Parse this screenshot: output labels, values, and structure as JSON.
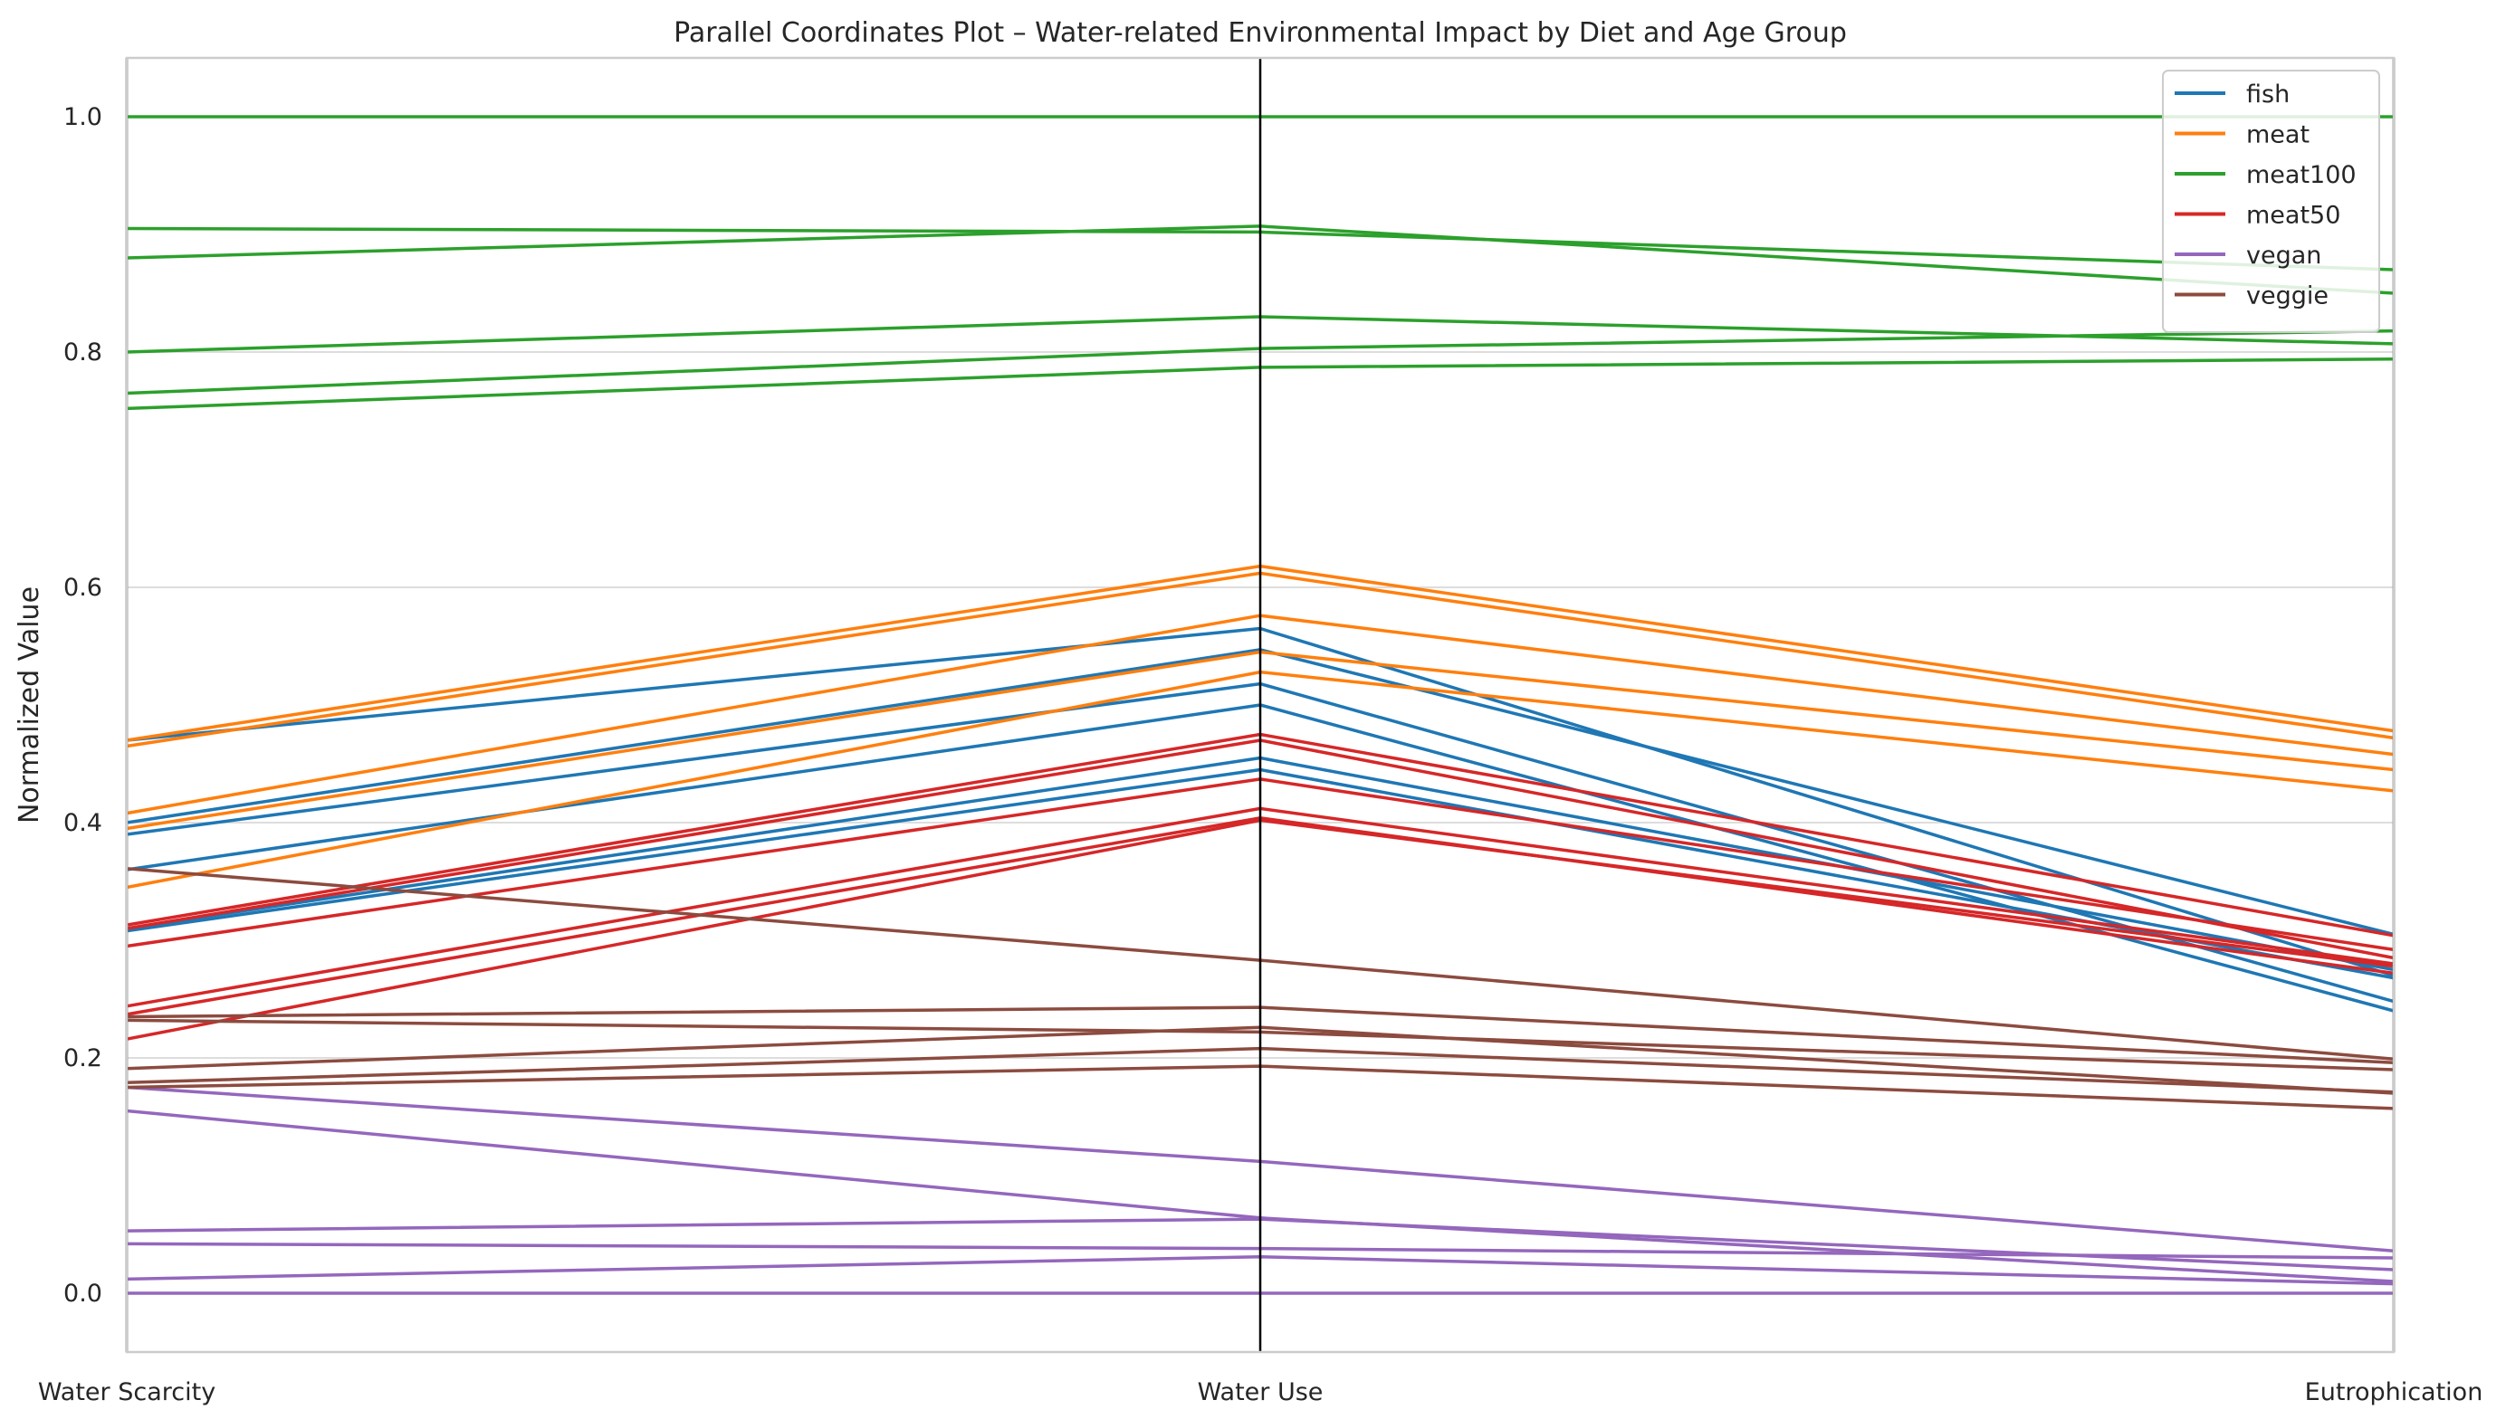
{
  "chart_data": {
    "type": "parallel-coordinates",
    "title": "Parallel Coordinates Plot – Water-related Environmental Impact by Diet and Age Group",
    "ylabel": "Normalized Value",
    "axes": [
      "Water Scarcity",
      "Water Use",
      "Eutrophication"
    ],
    "ylim": [
      -0.05,
      1.05
    ],
    "yticks": [
      "0.0",
      "0.2",
      "0.4",
      "0.6",
      "0.8",
      "1.0"
    ],
    "grid": true,
    "legend_position": "top-right",
    "series": [
      {
        "name": "fish",
        "color": "#1f77b4",
        "lines": [
          [
            0.47,
            0.565,
            0.27
          ],
          [
            0.4,
            0.547,
            0.305
          ],
          [
            0.39,
            0.518,
            0.248
          ],
          [
            0.36,
            0.5,
            0.24
          ],
          [
            0.31,
            0.455,
            0.275
          ],
          [
            0.308,
            0.445,
            0.268
          ]
        ]
      },
      {
        "name": "meat",
        "color": "#ff7f0e",
        "lines": [
          [
            0.47,
            0.618,
            0.478
          ],
          [
            0.465,
            0.612,
            0.472
          ],
          [
            0.408,
            0.576,
            0.458
          ],
          [
            0.395,
            0.545,
            0.445
          ],
          [
            0.345,
            0.528,
            0.427
          ]
        ]
      },
      {
        "name": "meat100",
        "color": "#2ca02c",
        "lines": [
          [
            1.0,
            1.0,
            1.0
          ],
          [
            0.905,
            0.902,
            0.87
          ],
          [
            0.88,
            0.907,
            0.85
          ],
          [
            0.8,
            0.83,
            0.807
          ],
          [
            0.765,
            0.803,
            0.818
          ],
          [
            0.752,
            0.787,
            0.794
          ]
        ]
      },
      {
        "name": "meat50",
        "color": "#d62728",
        "lines": [
          [
            0.313,
            0.475,
            0.304
          ],
          [
            0.31,
            0.47,
            0.285
          ],
          [
            0.295,
            0.437,
            0.292
          ],
          [
            0.244,
            0.412,
            0.28
          ],
          [
            0.237,
            0.404,
            0.272
          ],
          [
            0.216,
            0.402,
            0.278
          ]
        ]
      },
      {
        "name": "vegan",
        "color": "#9467bd",
        "lines": [
          [
            0.175,
            0.112,
            0.036
          ],
          [
            0.155,
            0.064,
            0.01
          ],
          [
            0.053,
            0.063,
            0.02
          ],
          [
            0.042,
            0.038,
            0.03
          ],
          [
            0.012,
            0.031,
            0.008
          ],
          [
            0.0,
            0.0,
            0.0
          ]
        ]
      },
      {
        "name": "veggie",
        "color": "#8c4b3f",
        "lines": [
          [
            0.361,
            0.283,
            0.199
          ],
          [
            0.235,
            0.243,
            0.196
          ],
          [
            0.232,
            0.222,
            0.19
          ],
          [
            0.191,
            0.226,
            0.17
          ],
          [
            0.179,
            0.208,
            0.171
          ],
          [
            0.175,
            0.193,
            0.157
          ]
        ]
      }
    ]
  }
}
